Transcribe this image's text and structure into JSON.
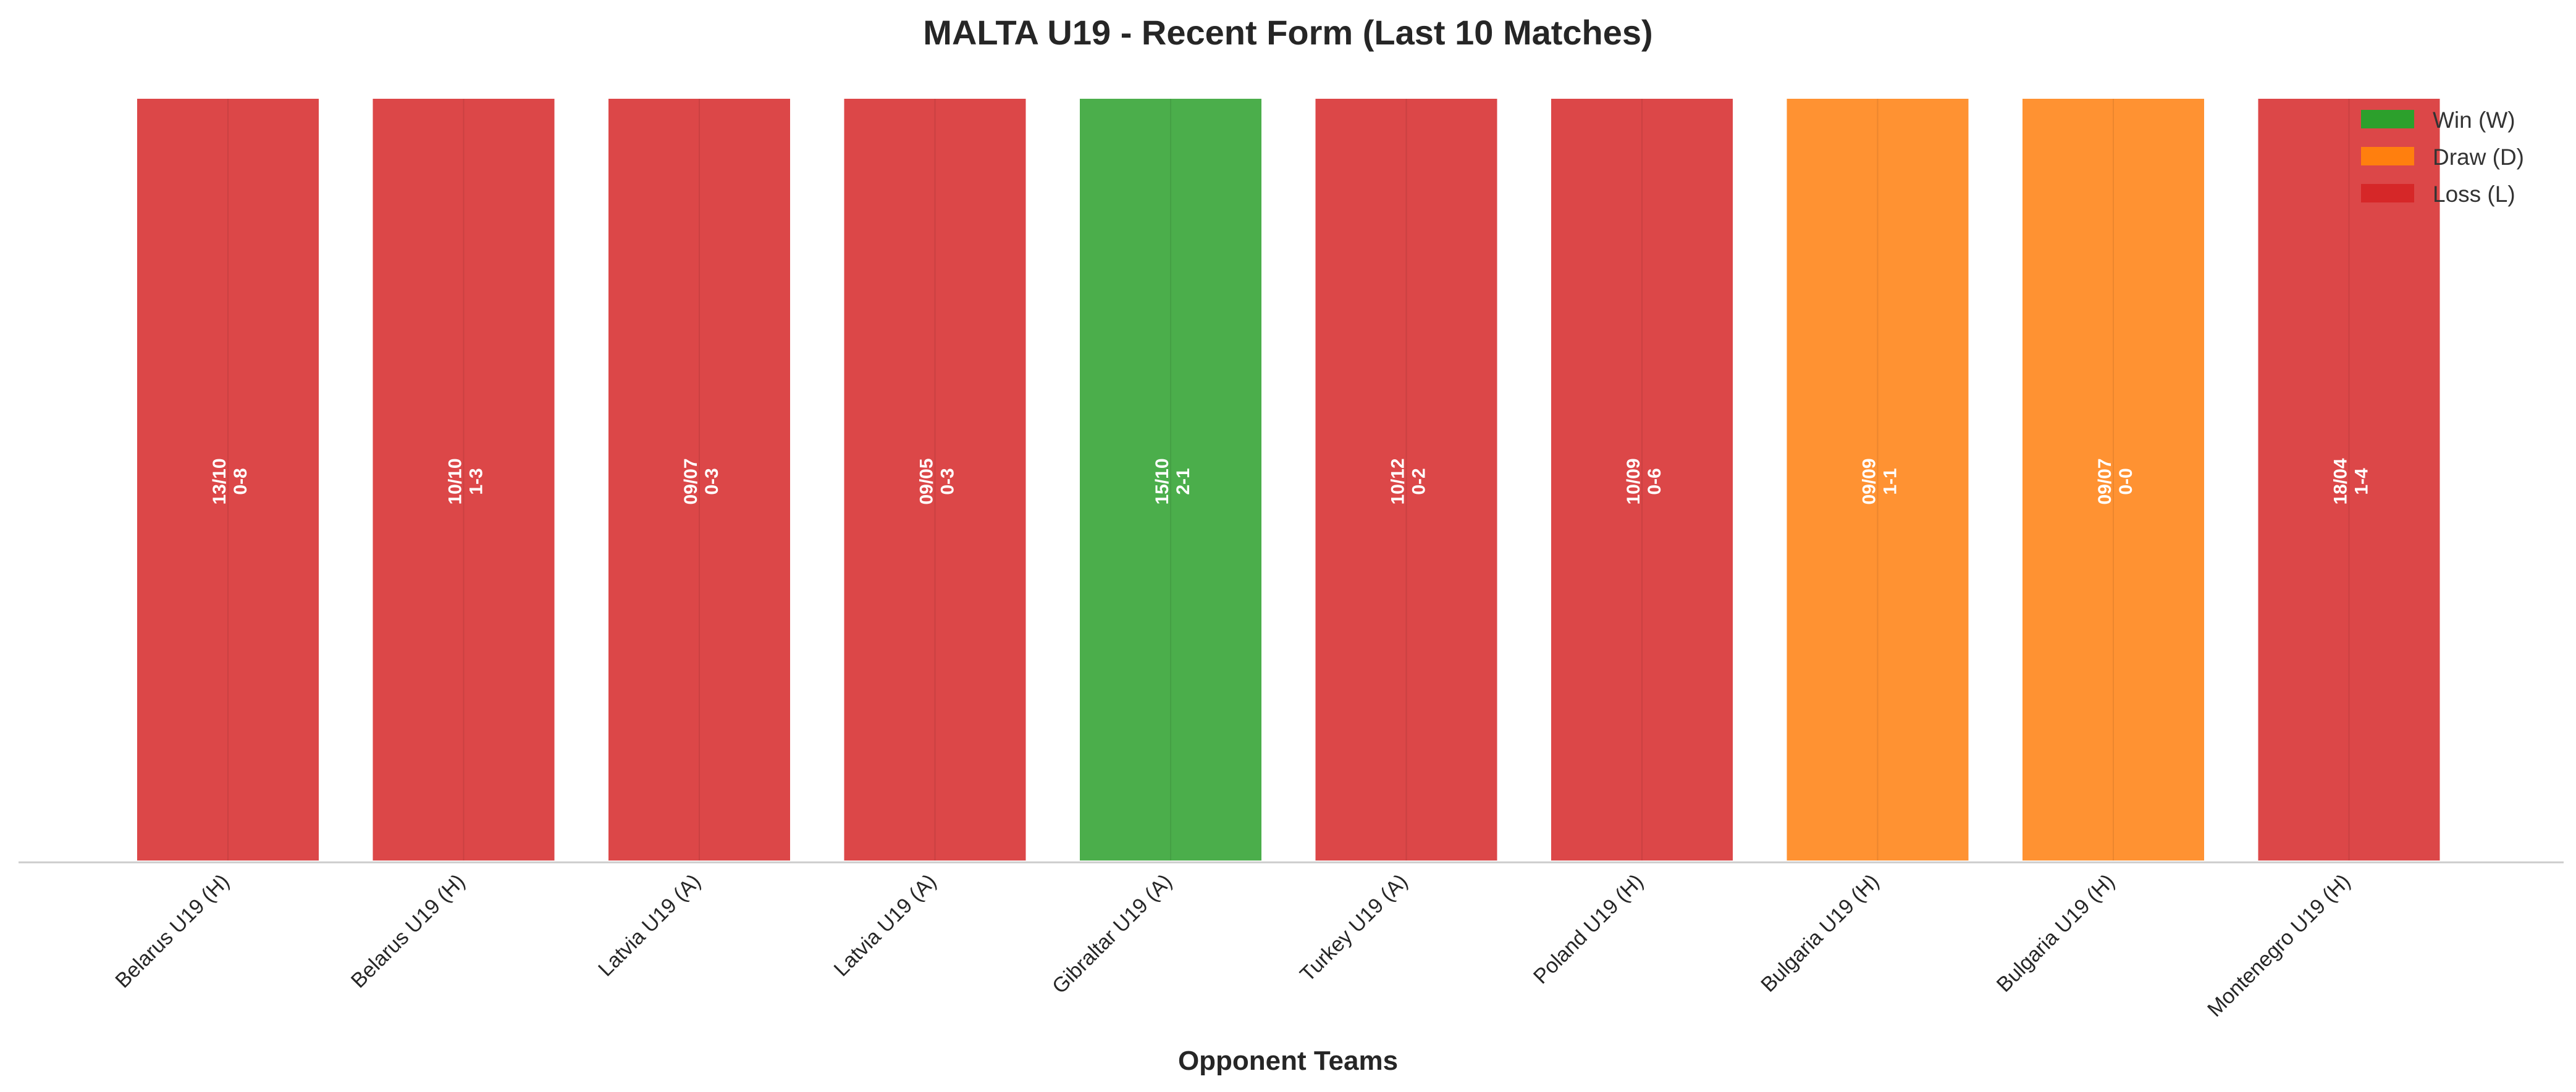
{
  "chart_data": {
    "type": "bar",
    "title": "MALTA U19 - Recent Form (Last 10 Matches)",
    "xlabel": "Opponent Teams",
    "ylabel": "",
    "ylim": [
      0,
      1
    ],
    "grid": false,
    "legend_position": "top-right",
    "categories": [
      "Belarus U19 (H)",
      "Belarus U19 (H)",
      "Latvia U19 (A)",
      "Latvia U19 (A)",
      "Gibraltar U19 (A)",
      "Turkey U19 (A)",
      "Poland U19 (H)",
      "Bulgaria U19 (H)",
      "Bulgaria U19 (H)",
      "Montenegro U19 (H)"
    ],
    "values": [
      1,
      1,
      1,
      1,
      1,
      1,
      1,
      1,
      1,
      1
    ],
    "results": [
      "L",
      "L",
      "L",
      "L",
      "W",
      "L",
      "L",
      "D",
      "D",
      "L"
    ],
    "dates": [
      "13/10",
      "10/10",
      "09/07",
      "09/05",
      "15/10",
      "10/12",
      "10/09",
      "09/09",
      "09/07",
      "18/04"
    ],
    "scores": [
      "0-8",
      "1-3",
      "0-3",
      "0-3",
      "2-1",
      "0-2",
      "0-6",
      "1-1",
      "0-0",
      "1-4"
    ],
    "legend": [
      {
        "key": "W",
        "label": "Win (W)",
        "color": "#2ca02c"
      },
      {
        "key": "D",
        "label": "Draw (D)",
        "color": "#ff7f0e"
      },
      {
        "key": "L",
        "label": "Loss (L)",
        "color": "#d62728"
      }
    ],
    "colors": {
      "W": "#2ca02c",
      "D": "#ff7f0e",
      "L": "#d62728"
    }
  }
}
